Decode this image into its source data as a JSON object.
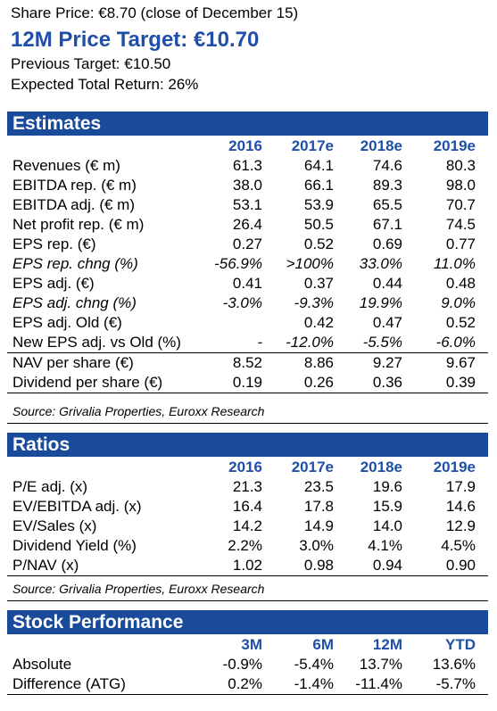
{
  "header": {
    "share_price": "Share Price: €8.70 (close of  December 15)",
    "price_target": "12M Price Target: €10.70",
    "previous_target": "Previous Target: €10.50",
    "expected_return": "Expected Total Return: 26%"
  },
  "estimates": {
    "title": "Estimates",
    "columns": [
      "2016",
      "2017e",
      "2018e",
      "2019e"
    ],
    "rows": [
      {
        "label": "Revenues (€ m)",
        "values": [
          "61.3",
          "64.1",
          "74.6",
          "80.3"
        ],
        "italic": false
      },
      {
        "label": "EBITDA rep. (€ m)",
        "values": [
          "38.0",
          "66.1",
          "89.3",
          "98.0"
        ],
        "italic": false
      },
      {
        "label": "EBITDA adj. (€ m)",
        "values": [
          "53.1",
          "53.9",
          "65.5",
          "70.7"
        ],
        "italic": false
      },
      {
        "label": "Net profit  rep. (€ m)",
        "values": [
          "26.4",
          "50.5",
          "67.1",
          "74.5"
        ],
        "italic": false
      },
      {
        "label": "EPS rep. (€)",
        "values": [
          "0.27",
          "0.52",
          "0.69",
          "0.77"
        ],
        "italic": false
      },
      {
        "label": "EPS rep. chng (%)",
        "values": [
          "-56.9%",
          ">100%",
          "33.0%",
          "11.0%"
        ],
        "italic": true
      },
      {
        "label": "EPS adj. (€)",
        "values": [
          "0.41",
          "0.37",
          "0.44",
          "0.48"
        ],
        "italic": false
      },
      {
        "label": "EPS adj. chng (%)",
        "values": [
          "-3.0%",
          "-9.3%",
          "19.9%",
          "9.0%"
        ],
        "italic": true
      },
      {
        "label": "EPS adj. Old (€)",
        "values": [
          "",
          "0.42",
          "0.47",
          "0.52"
        ],
        "italic": false
      },
      {
        "label": "New EPS adj. vs Old (%)",
        "values": [
          "-",
          "-12.0%",
          "-5.5%",
          "-6.0%"
        ],
        "italic": "values"
      },
      {
        "label": "NAV per share (€)",
        "values": [
          "8.52",
          "8.86",
          "9.27",
          "9.67"
        ],
        "italic": false
      },
      {
        "label": "Dividend per share (€)",
        "values": [
          "0.19",
          "0.26",
          "0.36",
          "0.39"
        ],
        "italic": false
      }
    ],
    "source": "Source: Grivalia Properties, Euroxx Research"
  },
  "ratios": {
    "title": "Ratios",
    "columns": [
      "2016",
      "2017e",
      "2018e",
      "2019e"
    ],
    "rows": [
      {
        "label": "P/E adj. (x)",
        "values": [
          "21.3",
          "23.5",
          "19.6",
          "17.9"
        ]
      },
      {
        "label": "EV/EBITDA adj. (x)",
        "values": [
          "16.4",
          "17.8",
          "15.9",
          "14.6"
        ]
      },
      {
        "label": "EV/Sales (x)",
        "values": [
          "14.2",
          "14.9",
          "14.0",
          "12.9"
        ]
      },
      {
        "label": "Dividend Yield (%)",
        "values": [
          "2.2%",
          "3.0%",
          "4.1%",
          "4.5%"
        ]
      },
      {
        "label": "P/NAV (x)",
        "values": [
          "1.02",
          "0.98",
          "0.94",
          "0.90"
        ]
      }
    ],
    "source": "Source: Grivalia Properties, Euroxx Research"
  },
  "stock_performance": {
    "title": "Stock Performance",
    "columns": [
      "3M",
      "6M",
      "12M",
      "YTD"
    ],
    "rows": [
      {
        "label": "Absolute",
        "values": [
          "-0.9%",
          "-5.4%",
          "13.7%",
          "13.6%"
        ]
      },
      {
        "label": "Difference (ATG)",
        "values": [
          "0.2%",
          "-1.4%",
          "-11.4%",
          "-5.7%"
        ]
      }
    ]
  }
}
